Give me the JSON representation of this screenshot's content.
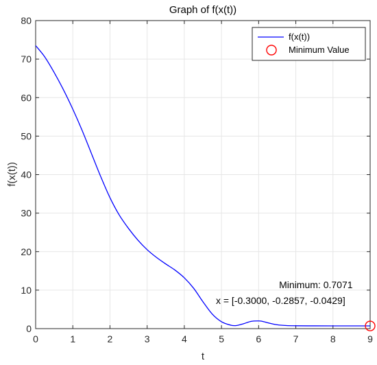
{
  "chart_data": {
    "type": "line",
    "title": "Graph of f(x(t))",
    "xlabel": "t",
    "ylabel": "f(x(t))",
    "xlim": [
      0,
      9
    ],
    "ylim": [
      0,
      80
    ],
    "xticks": [
      0,
      1,
      2,
      3,
      4,
      5,
      6,
      7,
      8,
      9
    ],
    "yticks": [
      0,
      10,
      20,
      30,
      40,
      50,
      60,
      70,
      80
    ],
    "grid": true,
    "legend": {
      "placement": "top-right",
      "entries": [
        "f(x(t))",
        "Minimum Value"
      ]
    },
    "series": [
      {
        "name": "f(x(t))",
        "color": "#0000ff",
        "x": [
          0,
          0.25,
          0.5,
          0.75,
          1.0,
          1.25,
          1.5,
          1.75,
          2.0,
          2.25,
          2.5,
          2.75,
          3.0,
          3.25,
          3.5,
          3.75,
          4.0,
          4.25,
          4.5,
          4.75,
          5.0,
          5.25,
          5.4,
          5.6,
          5.8,
          6.0,
          6.1,
          6.3,
          6.5,
          6.75,
          7.0,
          7.5,
          8.0,
          8.5,
          9.0
        ],
        "y": [
          73.5,
          70.5,
          66.5,
          62.0,
          57.0,
          51.5,
          45.5,
          39.5,
          34.0,
          29.5,
          26.0,
          23.0,
          20.5,
          18.5,
          16.8,
          15.2,
          13.2,
          10.5,
          7.0,
          3.8,
          1.8,
          0.9,
          0.8,
          1.3,
          1.9,
          2.0,
          1.9,
          1.4,
          1.0,
          0.8,
          0.75,
          0.72,
          0.71,
          0.71,
          0.71
        ]
      },
      {
        "name": "Minimum Value",
        "color": "#ff0000",
        "marker": "circle",
        "x": [
          9
        ],
        "y": [
          0.7071
        ]
      }
    ],
    "annotations": [
      {
        "text": "Minimum: 0.7071",
        "x": 6.55,
        "y": 10.5
      },
      {
        "text": "x = [-0.3000, -0.2857, -0.0429]",
        "x": 4.85,
        "y": 6.4
      }
    ]
  }
}
